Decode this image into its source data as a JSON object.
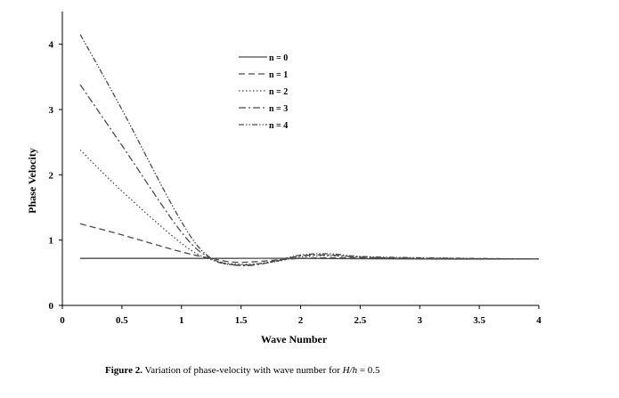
{
  "chart_data": {
    "type": "line",
    "title": "",
    "xlabel": "Wave Number",
    "ylabel": "Phase Velocity",
    "xlim": [
      0,
      4
    ],
    "ylim": [
      0,
      4.5
    ],
    "xticks": [
      "0",
      "0.5",
      "1",
      "1.5",
      "2",
      "2.5",
      "3",
      "3.5",
      "4"
    ],
    "yticks": [
      "0",
      "1",
      "2",
      "3",
      "4"
    ],
    "legend_position": "top-center",
    "series": [
      {
        "name": "n = 0",
        "dash": "solid",
        "x": [
          0.15,
          1.0,
          2.0,
          3.0,
          4.0
        ],
        "y": [
          0.72,
          0.72,
          0.72,
          0.71,
          0.71
        ]
      },
      {
        "name": "n = 1",
        "dash": "dashed",
        "x": [
          0.15,
          0.5,
          1.0,
          1.25,
          1.5,
          2.0,
          2.5,
          3.0,
          4.0
        ],
        "y": [
          1.25,
          1.08,
          0.82,
          0.72,
          0.66,
          0.72,
          0.73,
          0.72,
          0.71
        ]
      },
      {
        "name": "n = 2",
        "dash": "dotted",
        "x": [
          0.15,
          0.5,
          1.0,
          1.25,
          1.5,
          1.75,
          2.0,
          2.25,
          2.5,
          3.0,
          4.0
        ],
        "y": [
          2.38,
          1.75,
          0.95,
          0.7,
          0.63,
          0.66,
          0.74,
          0.76,
          0.74,
          0.72,
          0.71
        ]
      },
      {
        "name": "n = 3",
        "dash": "dash-dot",
        "x": [
          0.15,
          0.5,
          1.0,
          1.25,
          1.5,
          1.75,
          2.0,
          2.25,
          2.5,
          3.0,
          4.0
        ],
        "y": [
          3.38,
          2.45,
          1.12,
          0.72,
          0.61,
          0.66,
          0.76,
          0.77,
          0.74,
          0.72,
          0.71
        ]
      },
      {
        "name": "n = 4",
        "dash": "dash-dot-dot",
        "x": [
          0.15,
          0.5,
          1.0,
          1.25,
          1.5,
          1.75,
          2.0,
          2.25,
          2.5,
          3.0,
          4.0
        ],
        "y": [
          4.15,
          3.0,
          1.28,
          0.72,
          0.62,
          0.67,
          0.77,
          0.79,
          0.75,
          0.73,
          0.71
        ]
      }
    ]
  },
  "caption": {
    "label": "Figure   2.",
    "text": " Variation of phase-velocity with wave number for ",
    "math": "H/h",
    "math_value": " = 0.5"
  }
}
